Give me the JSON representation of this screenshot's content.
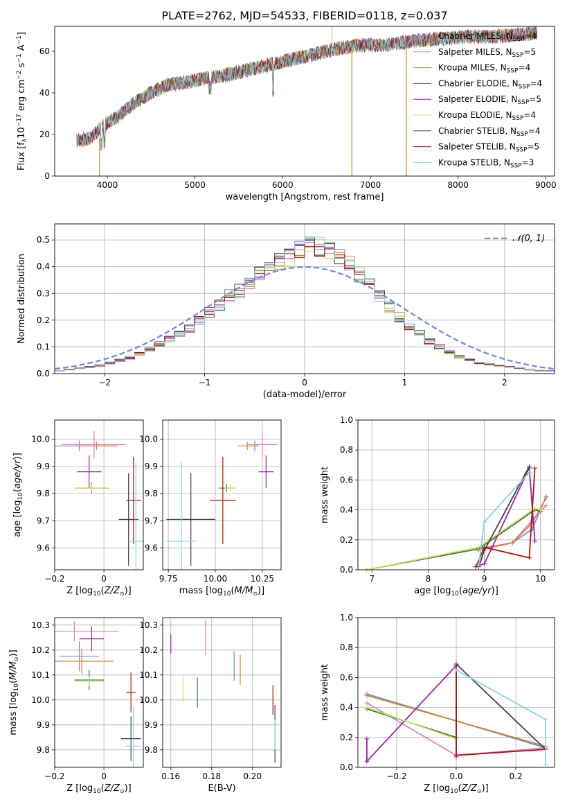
{
  "figure_title": "PLATE=2762, MJD=54533, FIBERID=0118, z=0.037",
  "colors": {
    "Chabrier MILES": "#6a8fd8",
    "Salpeter MILES": "#e07fc0",
    "Kroupa MILES": "#d9822b",
    "Chabrier ELODIE": "#3d7a3d",
    "Salpeter ELODIE": "#9a1fb0",
    "Kroupa ELODIE": "#c7e55a",
    "Chabrier STELIB": "#404040",
    "Salpeter STELIB": "#b01010",
    "Kroupa STELIB": "#7fd6e0"
  },
  "chart_data": [
    {
      "id": "spectrum",
      "type": "line",
      "xlabel": "wavelength [Angstrom, rest frame]",
      "ylabel": "Flux [f_λ10^-17 erg cm^-2 s^-1 A^-1]",
      "xlim": [
        3400,
        9100
      ],
      "ylim": [
        0,
        72
      ],
      "xticks": [
        4000,
        5000,
        6000,
        7000,
        8000,
        9000
      ],
      "yticks": [
        0,
        20,
        40,
        60
      ],
      "grid": false,
      "legend": "upper right",
      "continuum": {
        "x": [
          3650,
          3800,
          3950,
          4100,
          4300,
          4500,
          4700,
          4900,
          5100,
          5300,
          5500,
          5800,
          6000,
          6300,
          6600,
          6900,
          7200,
          7500,
          7800,
          8100,
          8400,
          8700,
          8900
        ],
        "y": [
          17,
          18,
          24,
          28,
          35,
          40,
          44,
          45,
          47,
          48,
          50,
          53,
          55,
          58,
          61,
          63,
          63,
          65,
          66,
          67,
          67,
          68,
          69
        ]
      },
      "series": [
        {
          "name": "Chabrier MILES, N_SSP=4",
          "label_main": "Chabrier MILES, N",
          "label_sub": "SSP",
          "label_tail": "=4",
          "model": "Chabrier MILES"
        },
        {
          "name": "Salpeter MILES, N_SSP=5",
          "label_main": "Salpeter MILES, N",
          "label_sub": "SSP",
          "label_tail": "=5",
          "model": "Salpeter MILES"
        },
        {
          "name": "Kroupa MILES, N_SSP=4",
          "label_main": "Kroupa MILES, N",
          "label_sub": "SSP",
          "label_tail": "=4",
          "model": "Kroupa MILES"
        },
        {
          "name": "Chabrier ELODIE, N_SSP=4",
          "label_main": "Chabrier ELODIE, N",
          "label_sub": "SSP",
          "label_tail": "=4",
          "model": "Chabrier ELODIE"
        },
        {
          "name": "Salpeter ELODIE, N_SSP=5",
          "label_main": "Salpeter ELODIE, N",
          "label_sub": "SSP",
          "label_tail": "=5",
          "model": "Salpeter ELODIE"
        },
        {
          "name": "Kroupa ELODIE, N_SSP=4",
          "label_main": "Kroupa ELODIE, N",
          "label_sub": "SSP",
          "label_tail": "=4",
          "model": "Kroupa ELODIE"
        },
        {
          "name": "Chabrier STELIB, N_SSP=4",
          "label_main": "Chabrier STELIB, N",
          "label_sub": "SSP",
          "label_tail": "=4",
          "model": "Chabrier STELIB"
        },
        {
          "name": "Salpeter STELIB, N_SSP=5",
          "label_main": "Salpeter STELIB, N",
          "label_sub": "SSP",
          "label_tail": "=5",
          "model": "Salpeter STELIB"
        },
        {
          "name": "Kroupa STELIB, N_SSP=3",
          "label_main": "Kroupa STELIB, N",
          "label_sub": "SSP",
          "label_tail": "=3",
          "model": "Kroupa STELIB"
        }
      ]
    },
    {
      "id": "residuals",
      "type": "histogram",
      "xlabel": "(data-model)/error",
      "ylabel": "Normed distribution",
      "xlim": [
        -2.5,
        2.5
      ],
      "ylim": [
        0,
        0.56
      ],
      "xticks": [
        -2,
        -1,
        0,
        1,
        2
      ],
      "yticks": [
        0.0,
        0.1,
        0.2,
        0.3,
        0.4,
        0.5
      ],
      "grid": true,
      "legend": "upper right",
      "normal_label": "N(0,1)",
      "bin_width": 0.1,
      "bins_start": -2.5,
      "bin_values": [
        0.01,
        0.015,
        0.02,
        0.025,
        0.03,
        0.04,
        0.05,
        0.06,
        0.075,
        0.09,
        0.11,
        0.13,
        0.15,
        0.17,
        0.2,
        0.23,
        0.26,
        0.29,
        0.31,
        0.33,
        0.37,
        0.4,
        0.42,
        0.44,
        0.46,
        0.47,
        0.47,
        0.46,
        0.44,
        0.41,
        0.37,
        0.33,
        0.29,
        0.25,
        0.21,
        0.18,
        0.15,
        0.12,
        0.1,
        0.08,
        0.065,
        0.05,
        0.04,
        0.035,
        0.03,
        0.025,
        0.02,
        0.015,
        0.012,
        0.01
      ]
    },
    {
      "id": "age-vs-Z",
      "type": "scatter",
      "xlabel": "Z [log10(Z/Z☉)]",
      "ylabel": "age [log10(age/yr)]",
      "xlim": [
        -0.2,
        0.16
      ],
      "ylim": [
        9.52,
        10.07
      ],
      "xticks": [
        -0.2,
        0.0
      ],
      "yticks": [
        9.6,
        9.7,
        9.8,
        9.9,
        10.0
      ],
      "grid": true,
      "points": [
        {
          "model": "Chabrier MILES",
          "x": -0.1,
          "xerr": 0.15,
          "y": 9.975,
          "yerr": 0.02
        },
        {
          "model": "Salpeter MILES",
          "x": -0.04,
          "xerr": 0.13,
          "y": 9.98,
          "yerr": 0.05
        },
        {
          "model": "Kroupa MILES",
          "x": -0.03,
          "xerr": 0.09,
          "y": 9.975,
          "yerr": 0.015
        },
        {
          "model": "Chabrier ELODIE",
          "x": -0.05,
          "xerr": 0.07,
          "y": 9.82,
          "yerr": 0.02
        },
        {
          "model": "Salpeter ELODIE",
          "x": -0.06,
          "xerr": 0.05,
          "y": 9.88,
          "yerr": 0.06
        },
        {
          "model": "Kroupa ELODIE",
          "x": -0.05,
          "xerr": 0.07,
          "y": 9.82,
          "yerr": 0.015
        },
        {
          "model": "Chabrier STELIB",
          "x": 0.1,
          "xerr": 0.04,
          "y": 9.705,
          "yerr": 0.17
        },
        {
          "model": "Salpeter STELIB",
          "x": 0.12,
          "xerr": 0.03,
          "y": 9.775,
          "yerr": 0.16
        },
        {
          "model": "Kroupa STELIB",
          "x": 0.13,
          "xerr": 0.03,
          "y": 9.625,
          "yerr": 0.29
        }
      ]
    },
    {
      "id": "age-vs-mass",
      "type": "scatter",
      "xlabel": "mass [log10(M/M☉)]",
      "ylabel": "",
      "xlim": [
        9.72,
        10.35
      ],
      "ylim": [
        9.52,
        10.07
      ],
      "xticks": [
        9.75,
        10.0,
        10.25
      ],
      "yticks": [
        9.6,
        9.7,
        9.8,
        9.9,
        10.0
      ],
      "grid": true,
      "points": [
        {
          "model": "Chabrier MILES",
          "x": 10.21,
          "xerr": 0.02,
          "y": 9.975,
          "yerr": 0.02
        },
        {
          "model": "Salpeter MILES",
          "x": 10.25,
          "xerr": 0.08,
          "y": 9.98,
          "yerr": 0.05
        },
        {
          "model": "Kroupa MILES",
          "x": 10.17,
          "xerr": 0.05,
          "y": 9.975,
          "yerr": 0.015
        },
        {
          "model": "Chabrier ELODIE",
          "x": 10.06,
          "xerr": 0.04,
          "y": 9.82,
          "yerr": 0.015
        },
        {
          "model": "Salpeter ELODIE",
          "x": 10.27,
          "xerr": 0.04,
          "y": 9.88,
          "yerr": 0.06
        },
        {
          "model": "Kroupa ELODIE",
          "x": 10.08,
          "xerr": 0.03,
          "y": 9.82,
          "yerr": 0.015
        },
        {
          "model": "Chabrier STELIB",
          "x": 9.87,
          "xerr": 0.13,
          "y": 9.705,
          "yerr": 0.17
        },
        {
          "model": "Salpeter STELIB",
          "x": 10.04,
          "xerr": 0.07,
          "y": 9.775,
          "yerr": 0.16
        },
        {
          "model": "Kroupa STELIB",
          "x": 9.82,
          "xerr": 0.08,
          "y": 9.625,
          "yerr": 0.29
        }
      ]
    },
    {
      "id": "mass-weight-vs-age",
      "type": "line",
      "xlabel": "age [log10(age/yr)]",
      "ylabel": "mass weight",
      "xlim": [
        6.75,
        10.25
      ],
      "ylim": [
        0,
        1.0
      ],
      "xticks": [
        7,
        8,
        9,
        10
      ],
      "yticks": [
        0.0,
        0.2,
        0.4,
        0.6,
        0.8,
        1.0
      ],
      "grid": true,
      "series": [
        {
          "model": "Chabrier MILES",
          "x": [
            8.9,
            9.5,
            9.85,
            10.1
          ],
          "y": [
            0.14,
            0.18,
            0.27,
            0.49
          ]
        },
        {
          "model": "Salpeter MILES",
          "x": [
            8.9,
            9.5,
            9.85,
            10.1
          ],
          "y": [
            0.13,
            0.18,
            0.33,
            0.43
          ]
        },
        {
          "model": "Kroupa MILES",
          "x": [
            8.9,
            9.5,
            9.85,
            10.1
          ],
          "y": [
            0.14,
            0.18,
            0.31,
            0.48
          ]
        },
        {
          "model": "Chabrier ELODIE",
          "x": [
            6.9,
            8.9,
            9.9,
            10.0
          ],
          "y": [
            0.0,
            0.14,
            0.4,
            0.39
          ]
        },
        {
          "model": "Salpeter ELODIE",
          "x": [
            8.85,
            9.0,
            9.8,
            9.9
          ],
          "y": [
            0.02,
            0.04,
            0.68,
            0.19
          ]
        },
        {
          "model": "Kroupa ELODIE",
          "x": [
            6.9,
            8.9,
            9.9,
            10.0
          ],
          "y": [
            0.0,
            0.15,
            0.41,
            0.4
          ]
        },
        {
          "model": "Chabrier STELIB",
          "x": [
            8.9,
            9.0,
            9.8
          ],
          "y": [
            0.02,
            0.13,
            0.69
          ]
        },
        {
          "model": "Salpeter STELIB",
          "x": [
            8.85,
            9.0,
            9.8,
            9.9
          ],
          "y": [
            0.02,
            0.15,
            0.08,
            0.68
          ]
        },
        {
          "model": "Kroupa STELIB",
          "x": [
            8.9,
            9.0,
            9.8
          ],
          "y": [
            0.03,
            0.32,
            0.65
          ]
        }
      ]
    },
    {
      "id": "mass-vs-Z",
      "type": "scatter",
      "xlabel": "Z [log10(Z/Z☉)]",
      "ylabel": "mass [log10(M/M☉)]",
      "xlim": [
        -0.2,
        0.16
      ],
      "ylim": [
        9.73,
        10.33
      ],
      "xticks": [
        -0.2,
        0.0
      ],
      "yticks": [
        9.8,
        9.9,
        10.0,
        10.1,
        10.2,
        10.3
      ],
      "grid": true,
      "points": [
        {
          "model": "Chabrier MILES",
          "x": -0.1,
          "xerr": 0.08,
          "y": 10.175,
          "yerr": 0.06
        },
        {
          "model": "Salpeter MILES",
          "x": -0.12,
          "xerr": 0.18,
          "y": 10.275,
          "yerr": 0.04
        },
        {
          "model": "Kroupa MILES",
          "x": -0.09,
          "xerr": 0.13,
          "y": 10.155,
          "yerr": 0.05
        },
        {
          "model": "Chabrier ELODIE",
          "x": -0.06,
          "xerr": 0.06,
          "y": 10.08,
          "yerr": 0.04
        },
        {
          "model": "Salpeter ELODIE",
          "x": -0.05,
          "xerr": 0.05,
          "y": 10.245,
          "yerr": 0.05
        },
        {
          "model": "Kroupa ELODIE",
          "x": -0.06,
          "xerr": 0.06,
          "y": 10.075,
          "yerr": 0.02
        },
        {
          "model": "Chabrier STELIB",
          "x": 0.11,
          "xerr": 0.04,
          "y": 9.845,
          "yerr": 0.09
        },
        {
          "model": "Salpeter STELIB",
          "x": 0.11,
          "xerr": 0.02,
          "y": 10.03,
          "yerr": 0.08
        },
        {
          "model": "Kroupa STELIB",
          "x": 0.12,
          "xerr": 0.03,
          "y": 9.815,
          "yerr": 0.16
        }
      ]
    },
    {
      "id": "mass-vs-ebv",
      "type": "scatter",
      "xlabel": "E(B-V)",
      "ylabel": "",
      "xlim": [
        0.156,
        0.214
      ],
      "ylim": [
        9.73,
        10.33
      ],
      "xticks": [
        0.16,
        0.18,
        0.2
      ],
      "yticks": [
        9.8,
        9.9,
        10.0,
        10.1,
        10.2,
        10.3
      ],
      "grid": true,
      "points": [
        {
          "model": "Chabrier MILES",
          "x": 0.191,
          "xerr": 0,
          "y": 10.135,
          "yerr": 0.06
        },
        {
          "model": "Salpeter MILES",
          "x": 0.177,
          "xerr": 0,
          "y": 10.25,
          "yerr": 0.07
        },
        {
          "model": "Kroupa MILES",
          "x": 0.194,
          "xerr": 0,
          "y": 10.12,
          "yerr": 0.06
        },
        {
          "model": "Chabrier ELODIE",
          "x": 0.173,
          "xerr": 0,
          "y": 10.03,
          "yerr": 0.06
        },
        {
          "model": "Salpeter ELODIE",
          "x": 0.16,
          "xerr": 0,
          "y": 10.225,
          "yerr": 0.04
        },
        {
          "model": "Kroupa ELODIE",
          "x": 0.166,
          "xerr": 0,
          "y": 10.045,
          "yerr": 0.05
        },
        {
          "model": "Chabrier STELIB",
          "x": 0.211,
          "xerr": 0,
          "y": 9.865,
          "yerr": 0.115
        },
        {
          "model": "Salpeter STELIB",
          "x": 0.21,
          "xerr": 0,
          "y": 10.0,
          "yerr": 0.06
        },
        {
          "model": "Kroupa STELIB",
          "x": 0.211,
          "xerr": 0,
          "y": 9.86,
          "yerr": 0.06
        }
      ]
    },
    {
      "id": "mass-weight-vs-Z",
      "type": "line",
      "xlabel": "Z [log10(Z/Z☉)]",
      "ylabel": "mass weight",
      "xlim": [
        -0.33,
        0.33
      ],
      "ylim": [
        0,
        1.0
      ],
      "xticks": [
        -0.2,
        0.0,
        0.2
      ],
      "yticks": [
        0.0,
        0.2,
        0.4,
        0.6,
        0.8,
        1.0
      ],
      "grid": true,
      "series": [
        {
          "model": "Chabrier MILES",
          "x": [
            -0.3,
            0.3
          ],
          "y": [
            0.49,
            0.13
          ]
        },
        {
          "model": "Salpeter MILES",
          "x": [
            -0.3,
            0.0,
            0.3
          ],
          "y": [
            0.43,
            0.08,
            0.13
          ]
        },
        {
          "model": "Kroupa MILES",
          "x": [
            -0.3,
            0.3
          ],
          "y": [
            0.48,
            0.14
          ]
        },
        {
          "model": "Chabrier ELODIE",
          "x": [
            -0.3,
            0.0
          ],
          "y": [
            0.39,
            0.2
          ]
        },
        {
          "model": "Salpeter ELODIE",
          "x": [
            -0.3,
            -0.3,
            0.0,
            0.0
          ],
          "y": [
            0.19,
            0.04,
            0.68,
            0.07
          ]
        },
        {
          "model": "Kroupa ELODIE",
          "x": [
            -0.3,
            0.0
          ],
          "y": [
            0.4,
            0.19
          ]
        },
        {
          "model": "Chabrier STELIB",
          "x": [
            0.0,
            0.3
          ],
          "y": [
            0.69,
            0.12
          ]
        },
        {
          "model": "Salpeter STELIB",
          "x": [
            0.0,
            0.0,
            0.3
          ],
          "y": [
            0.68,
            0.08,
            0.12
          ]
        },
        {
          "model": "Kroupa STELIB",
          "x": [
            0.0,
            0.3,
            0.3
          ],
          "y": [
            0.65,
            0.32,
            0.02
          ]
        }
      ]
    }
  ]
}
